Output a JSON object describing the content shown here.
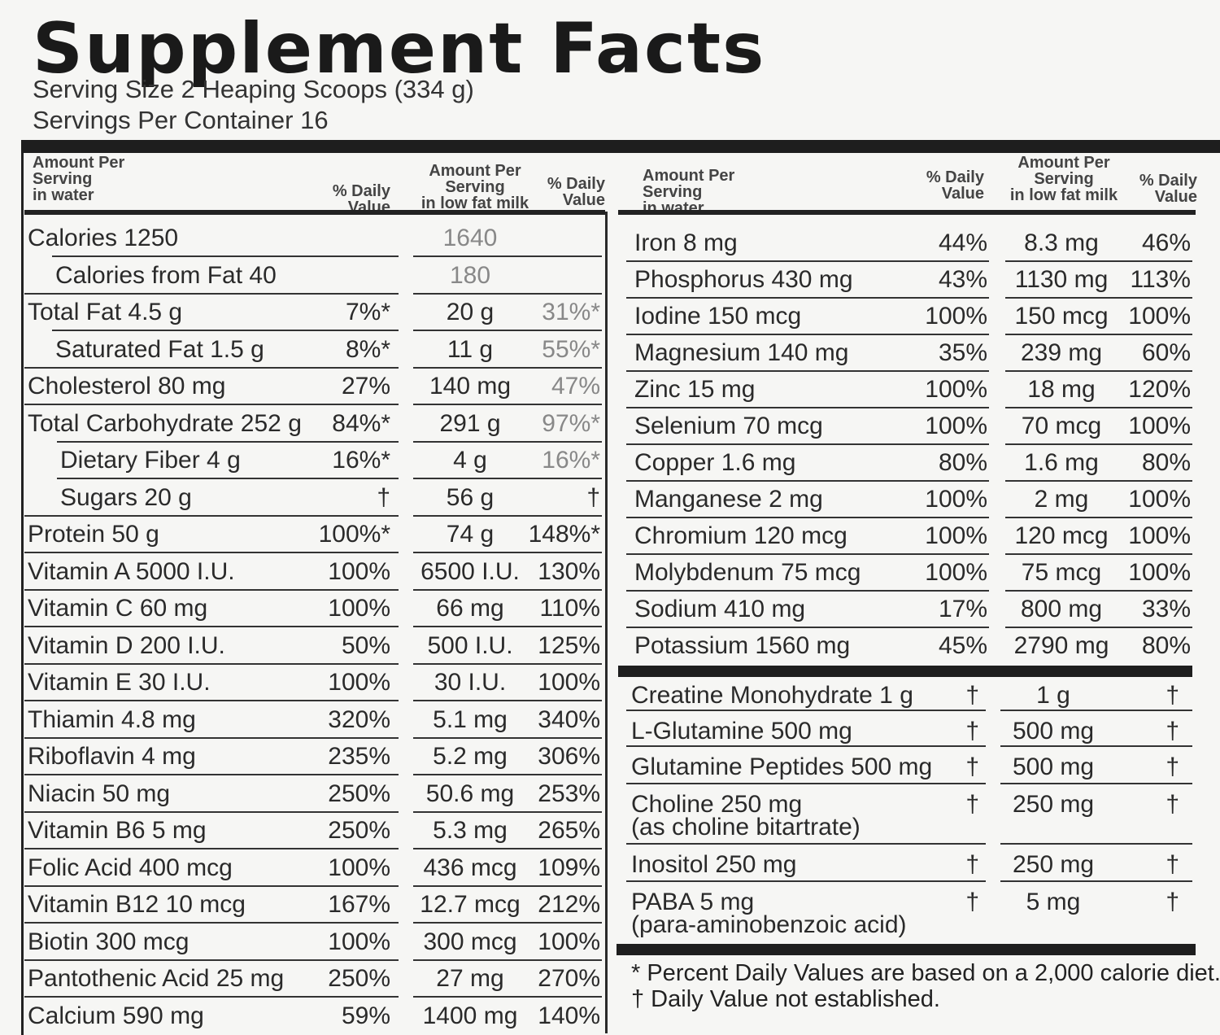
{
  "title": "Supplement Facts",
  "serving_size": "Serving Size 2 Heaping Scoops (334 g)",
  "servings_per_container": "Servings Per Container 16",
  "headers": {
    "left_amount_water": "Amount Per\nServing\nin water",
    "left_dv_water": "% Daily\nValue",
    "left_amount_milk": "Amount Per\nServing\nin low fat milk",
    "left_dv_milk": "% Daily\nValue",
    "right_amount_water": "Amount Per\nServing\nin water",
    "right_dv_water": "% Daily\nValue",
    "right_amount_milk": "Amount Per\nServing\nin low fat milk",
    "right_dv_milk": "% Daily\nValue"
  },
  "left_rows": [
    {
      "name": "Calories  1250",
      "dv": "",
      "milk": "1640",
      "milk_dv": ""
    },
    {
      "name": "Calories from Fat  40",
      "dv": "",
      "milk": "180",
      "milk_dv": ""
    },
    {
      "name": "Total Fat  4.5 g",
      "dv": "7%*",
      "milk": "20 g",
      "milk_dv": "31%*"
    },
    {
      "name": "Saturated Fat  1.5 g",
      "dv": "8%*",
      "milk": "11 g",
      "milk_dv": "55%*"
    },
    {
      "name": "Cholesterol  80 mg",
      "dv": "27%",
      "milk": "140 mg",
      "milk_dv": "47%"
    },
    {
      "name": "Total Carbohydrate  252 g",
      "dv": "84%*",
      "milk": "291 g",
      "milk_dv": "97%*"
    },
    {
      "name": "Dietary Fiber  4 g",
      "dv": "16%*",
      "milk": "4 g",
      "milk_dv": "16%*"
    },
    {
      "name": "Sugars  20 g",
      "dv": "†",
      "milk": "56 g",
      "milk_dv": "†"
    },
    {
      "name": "Protein  50 g",
      "dv": "100%*",
      "milk": "74 g",
      "milk_dv": "148%*"
    },
    {
      "name": "Vitamin A  5000 I.U.",
      "dv": "100%",
      "milk": "6500 I.U.",
      "milk_dv": "130%"
    },
    {
      "name": "Vitamin C  60 mg",
      "dv": "100%",
      "milk": "66 mg",
      "milk_dv": "110%"
    },
    {
      "name": "Vitamin D  200 I.U.",
      "dv": "50%",
      "milk": "500 I.U.",
      "milk_dv": "125%"
    },
    {
      "name": "Vitamin E  30 I.U.",
      "dv": "100%",
      "milk": "30 I.U.",
      "milk_dv": "100%"
    },
    {
      "name": "Thiamin  4.8 mg",
      "dv": "320%",
      "milk": "5.1 mg",
      "milk_dv": "340%"
    },
    {
      "name": "Riboflavin  4 mg",
      "dv": "235%",
      "milk": "5.2 mg",
      "milk_dv": "306%"
    },
    {
      "name": "Niacin  50 mg",
      "dv": "250%",
      "milk": "50.6 mg",
      "milk_dv": "253%"
    },
    {
      "name": "Vitamin B6  5 mg",
      "dv": "250%",
      "milk": "5.3 mg",
      "milk_dv": "265%"
    },
    {
      "name": "Folic Acid  400 mcg",
      "dv": "100%",
      "milk": "436 mcg",
      "milk_dv": "109%"
    },
    {
      "name": "Vitamin B12  10 mcg",
      "dv": "167%",
      "milk": "12.7 mcg",
      "milk_dv": "212%"
    },
    {
      "name": "Biotin  300 mcg",
      "dv": "100%",
      "milk": "300 mcg",
      "milk_dv": "100%"
    },
    {
      "name": "Pantothenic Acid  25 mg",
      "dv": "250%",
      "milk": "27 mg",
      "milk_dv": "270%"
    },
    {
      "name": "Calcium  590 mg",
      "dv": "59%",
      "milk": "1400 mg",
      "milk_dv": "140%"
    }
  ],
  "right_rows": [
    {
      "name": "Iron  8 mg",
      "dv": "44%",
      "milk": "8.3 mg",
      "milk_dv": "46%"
    },
    {
      "name": "Phosphorus  430 mg",
      "dv": "43%",
      "milk": "1130 mg",
      "milk_dv": "113%"
    },
    {
      "name": "Iodine  150 mcg",
      "dv": "100%",
      "milk": "150 mcg",
      "milk_dv": "100%"
    },
    {
      "name": "Magnesium  140 mg",
      "dv": "35%",
      "milk": "239 mg",
      "milk_dv": "60%"
    },
    {
      "name": "Zinc  15 mg",
      "dv": "100%",
      "milk": "18 mg",
      "milk_dv": "120%"
    },
    {
      "name": "Selenium  70 mcg",
      "dv": "100%",
      "milk": "70 mcg",
      "milk_dv": "100%"
    },
    {
      "name": "Copper  1.6 mg",
      "dv": "80%",
      "milk": "1.6 mg",
      "milk_dv": "80%"
    },
    {
      "name": "Manganese  2 mg",
      "dv": "100%",
      "milk": "2 mg",
      "milk_dv": "100%"
    },
    {
      "name": "Chromium  120 mcg",
      "dv": "100%",
      "milk": "120 mcg",
      "milk_dv": "100%"
    },
    {
      "name": "Molybdenum  75 mcg",
      "dv": "100%",
      "milk": "75 mcg",
      "milk_dv": "100%"
    },
    {
      "name": "Sodium  410 mg",
      "dv": "17%",
      "milk": "800 mg",
      "milk_dv": "33%"
    },
    {
      "name": "Potassium  1560 mg",
      "dv": "45%",
      "milk": "2790 mg",
      "milk_dv": "80%"
    }
  ],
  "other_rows": [
    {
      "name": "Creatine Monohydrate  1 g",
      "sub": "",
      "dv": "†",
      "milk": "1 g",
      "milk_dv": "†"
    },
    {
      "name": "L-Glutamine  500 mg",
      "sub": "",
      "dv": "†",
      "milk": "500 mg",
      "milk_dv": "†"
    },
    {
      "name": "Glutamine Peptides  500 mg",
      "sub": "",
      "dv": "†",
      "milk": "500 mg",
      "milk_dv": "†"
    },
    {
      "name": "Choline  250 mg",
      "sub": "(as choline bitartrate)",
      "dv": "†",
      "milk": "250 mg",
      "milk_dv": "†"
    },
    {
      "name": "Inositol  250 mg",
      "sub": "",
      "dv": "†",
      "milk": "250 mg",
      "milk_dv": "†"
    },
    {
      "name": "PABA  5 mg",
      "sub": "(para-aminobenzoic acid)",
      "dv": "†",
      "milk": "5 mg",
      "milk_dv": "†"
    }
  ],
  "footnotes": {
    "percent": "* Percent Daily Values are based on a 2,000 calorie diet.",
    "dagger": "† Daily Value not established."
  }
}
